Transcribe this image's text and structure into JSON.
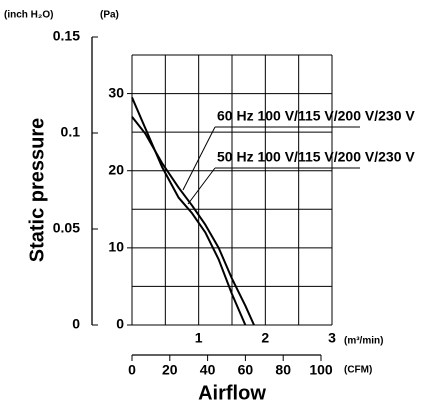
{
  "chart_data": {
    "type": "line",
    "y_label": "Static pressure",
    "x_label": "Airflow",
    "y_unit": "(Pa)",
    "y2_unit": "(inch H₂O)",
    "x_unit": "(m³/min)",
    "x2_unit": "(CFM)",
    "xlim": [
      0,
      3
    ],
    "xticks": [
      1,
      2,
      3
    ],
    "x2lim": [
      0,
      100
    ],
    "x2ticks": [
      0,
      20,
      40,
      60,
      80,
      100
    ],
    "ylim": [
      0,
      35
    ],
    "yticks": [
      0,
      10,
      20,
      30
    ],
    "y2lim": [
      0,
      0.15
    ],
    "y2ticks": [
      0,
      0.05,
      0.1,
      0.15
    ],
    "xgrid": [
      0,
      0.5,
      1,
      1.5,
      2,
      2.5,
      3
    ],
    "ygrid": [
      0,
      5,
      10,
      15,
      20,
      25,
      30,
      35
    ],
    "series": [
      {
        "name": "60 Hz 100 V/115 V/200 V/230 V",
        "color": "#000000",
        "x": [
          0,
          0.2,
          0.45,
          0.7,
          0.9,
          1.1,
          1.3,
          1.5,
          1.7
        ],
        "values": [
          29.5,
          25.5,
          20.5,
          16.5,
          14.5,
          12,
          8.5,
          4,
          0
        ]
      },
      {
        "name": "50 Hz 100 V/115 V/200 V/230 V",
        "color": "#000000",
        "x": [
          0,
          0.2,
          0.45,
          0.7,
          0.9,
          1.1,
          1.3,
          1.5,
          1.7,
          1.83
        ],
        "values": [
          27,
          24.8,
          21,
          17.8,
          15.5,
          13,
          10,
          6,
          2.5,
          0
        ]
      }
    ]
  }
}
